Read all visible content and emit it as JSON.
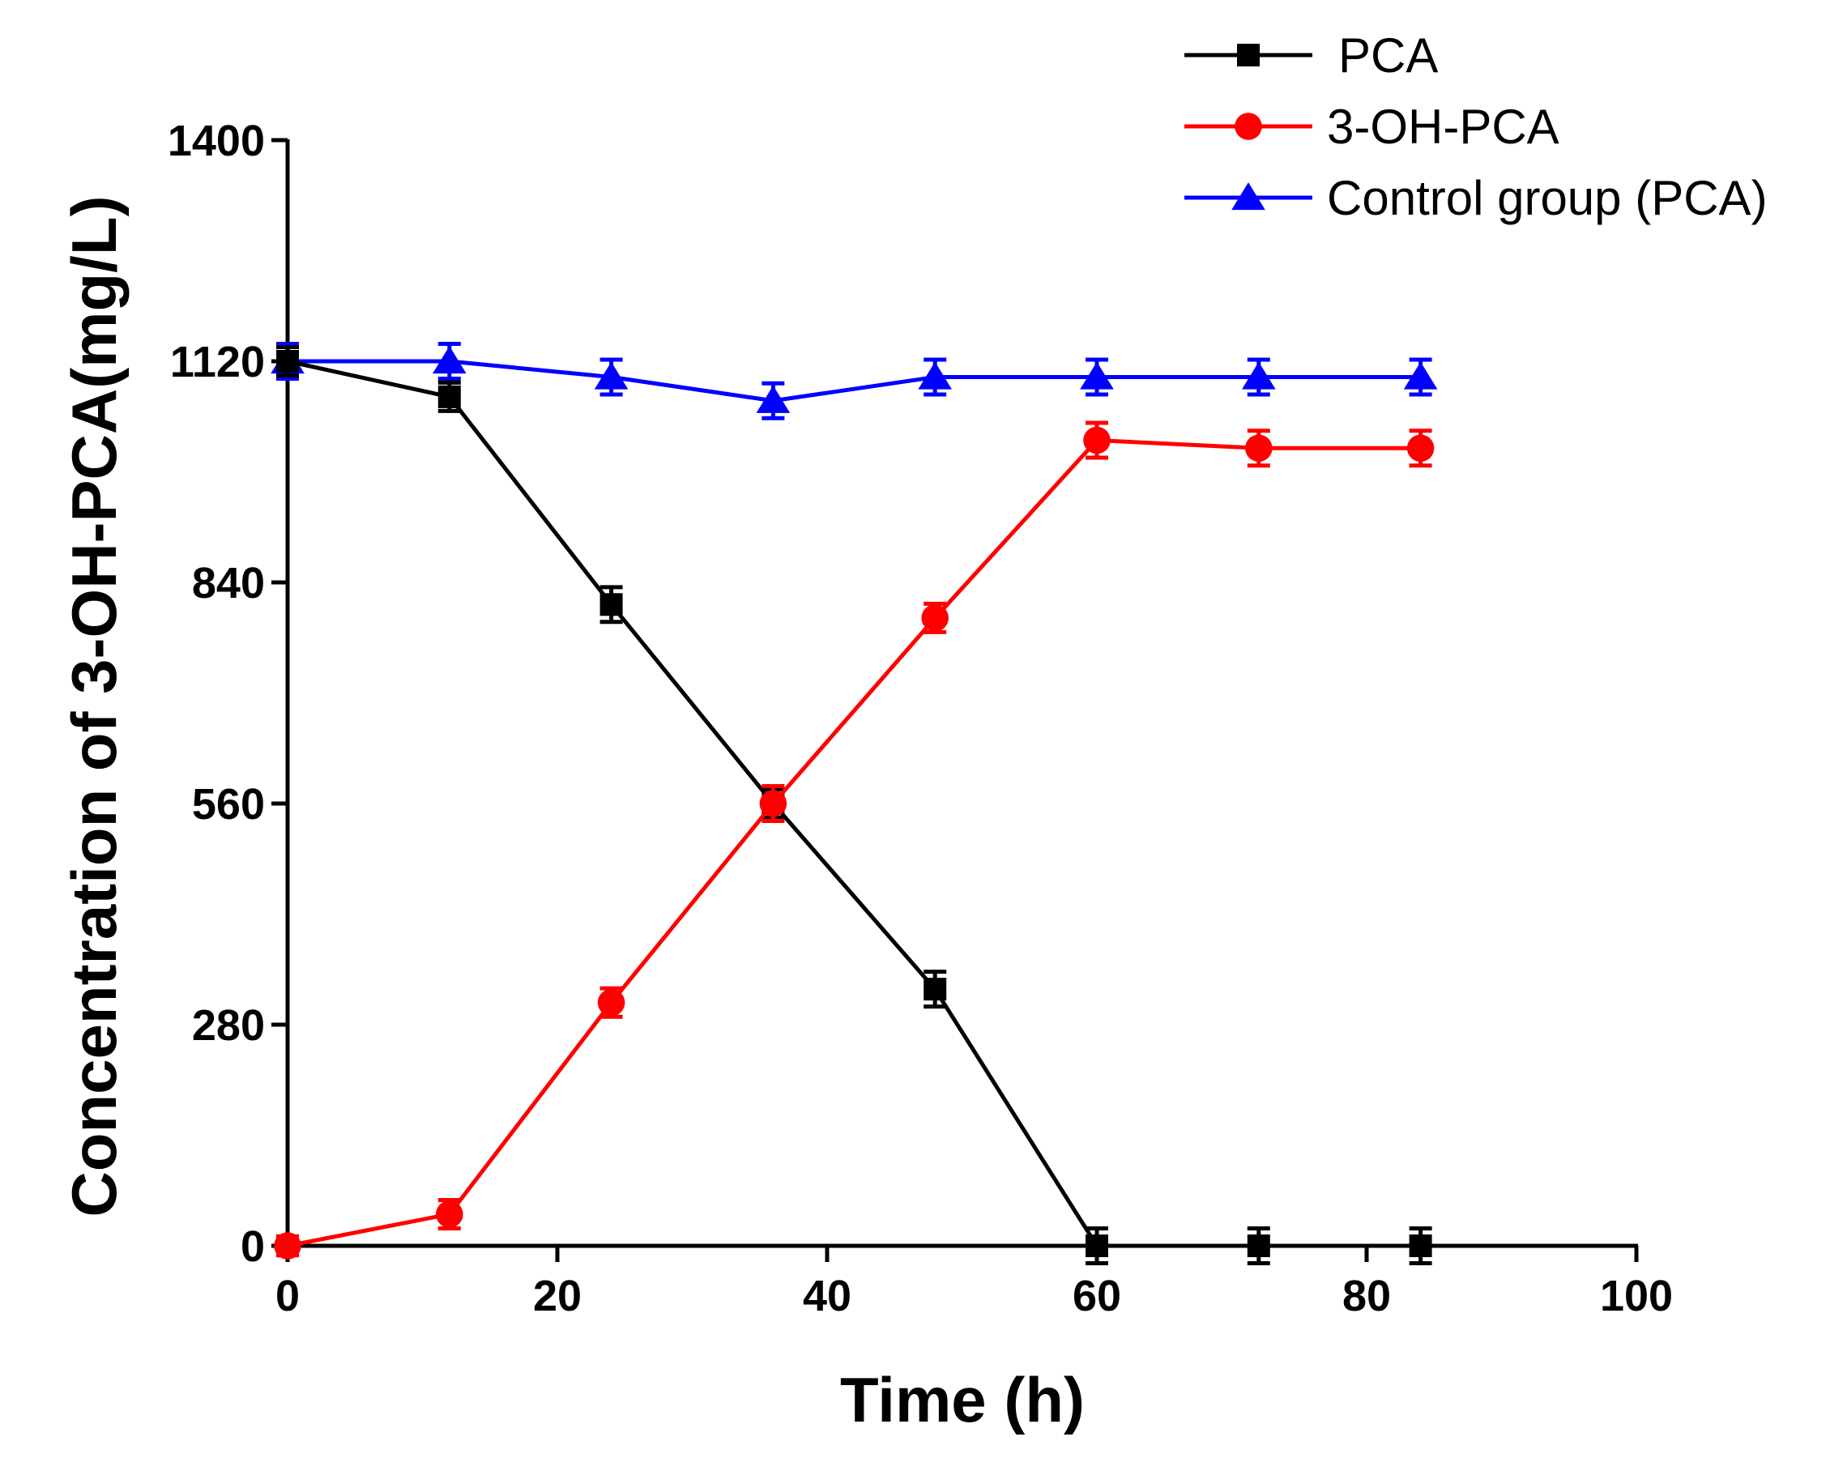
{
  "chart_data": {
    "type": "line",
    "title": "",
    "xlabel": "Time (h)",
    "ylabel": "Concentration of 3-OH-PCA(mg/L)",
    "xlim": [
      0,
      100
    ],
    "ylim": [
      0,
      1400
    ],
    "xticks": [
      0,
      20,
      40,
      60,
      80,
      100
    ],
    "yticks": [
      0,
      280,
      560,
      840,
      1120,
      1400
    ],
    "legend_position": "top-right",
    "series": [
      {
        "name": "PCA",
        "color": "#000000",
        "marker": "square",
        "x": [
          0,
          12,
          24,
          36,
          48,
          60,
          72,
          84
        ],
        "y": [
          1120,
          1075,
          812,
          560,
          325,
          0,
          0,
          0
        ],
        "err": [
          18,
          18,
          22,
          18,
          22,
          22,
          22,
          22
        ]
      },
      {
        "name": "3-OH-PCA",
        "color": "#ff0000",
        "marker": "circle",
        "x": [
          0,
          12,
          24,
          36,
          48,
          60,
          72,
          84
        ],
        "y": [
          0,
          40,
          308,
          560,
          795,
          1020,
          1010,
          1010
        ],
        "err": [
          12,
          18,
          18,
          22,
          18,
          22,
          22,
          22
        ]
      },
      {
        "name": "Control group (PCA)",
        "color": "#0000ff",
        "marker": "triangle",
        "x": [
          0,
          12,
          24,
          36,
          48,
          60,
          72,
          84
        ],
        "y": [
          1120,
          1120,
          1100,
          1070,
          1100,
          1100,
          1100,
          1100
        ],
        "err": [
          22,
          22,
          22,
          22,
          22,
          22,
          22,
          22
        ]
      }
    ]
  }
}
